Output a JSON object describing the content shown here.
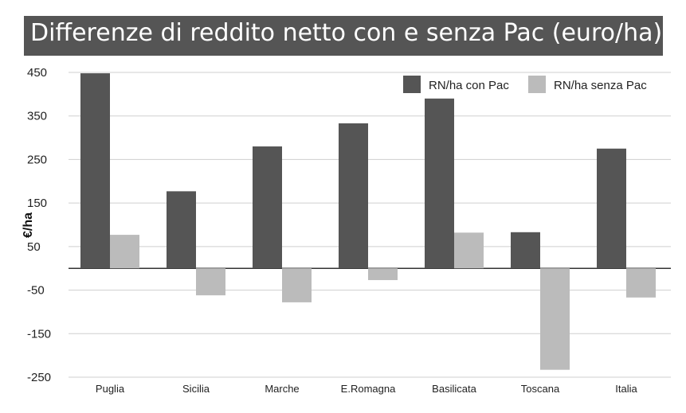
{
  "chart_data": {
    "type": "bar",
    "title": "Differenze di reddito netto con e senza Pac (euro/ha)",
    "xlabel": "",
    "ylabel": "€/ha",
    "categories": [
      "Puglia",
      "Sicilia",
      "Marche",
      "E.Romagna",
      "Basilicata",
      "Toscana",
      "Italia"
    ],
    "series": [
      {
        "name": "RN/ha con Pac",
        "color": "#555555",
        "values": [
          448,
          177,
          280,
          333,
          390,
          83,
          275
        ]
      },
      {
        "name": "RN/ha senza Pac",
        "color": "#bbbbbb",
        "values": [
          77,
          -62,
          -78,
          -27,
          82,
          -233,
          -67
        ]
      }
    ],
    "yticks": [
      450,
      350,
      250,
      150,
      50,
      -50,
      -150,
      -250
    ],
    "ylim": [
      -250,
      450
    ],
    "grid": true,
    "legend": "top-right"
  }
}
